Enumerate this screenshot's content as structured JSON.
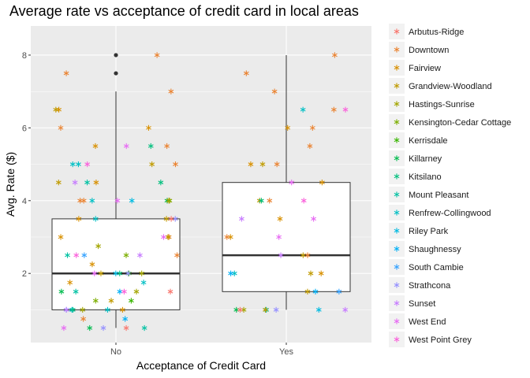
{
  "chart_data": {
    "type": "boxplot-jitter",
    "title": "Average rate vs acceptance of credit card in local areas",
    "xlabel": "Acceptance of Credit Card",
    "ylabel": "Avg. Rate ($)",
    "categories": [
      "No",
      "Yes"
    ],
    "ylim": [
      0.1,
      8.8
    ],
    "yticks": [
      2,
      4,
      6,
      8
    ],
    "grid": true,
    "legend_position": "right",
    "boxes": [
      {
        "category": "No",
        "whisker_low": 0.5,
        "q1": 1.0,
        "median": 2.0,
        "q3": 3.5,
        "whisker_high": 7.0,
        "outliers": [
          7.5,
          8.0
        ]
      },
      {
        "category": "Yes",
        "whisker_low": 1.0,
        "q1": 1.5,
        "median": 2.5,
        "q3": 4.5,
        "whisker_high": 8.0,
        "outliers": []
      }
    ],
    "series": [
      {
        "name": "Arbutus-Ridge",
        "color": "#F8766D"
      },
      {
        "name": "Downtown",
        "color": "#EA8331"
      },
      {
        "name": "Fairview",
        "color": "#D89000"
      },
      {
        "name": "Grandview-Woodland",
        "color": "#C09B00"
      },
      {
        "name": "Hastings-Sunrise",
        "color": "#A3A500"
      },
      {
        "name": "Kensington-Cedar Cottage",
        "color": "#7CAE00"
      },
      {
        "name": "Kerrisdale",
        "color": "#39B600"
      },
      {
        "name": "Killarney",
        "color": "#00BB4E"
      },
      {
        "name": "Kitsilano",
        "color": "#00BF7D"
      },
      {
        "name": "Mount Pleasant",
        "color": "#00C1A3"
      },
      {
        "name": "Renfrew-Collingwood",
        "color": "#00BFC4"
      },
      {
        "name": "Riley Park",
        "color": "#00BAE0"
      },
      {
        "name": "Shaughnessy",
        "color": "#00B0F6"
      },
      {
        "name": "South Cambie",
        "color": "#35A2FF"
      },
      {
        "name": "Strathcona",
        "color": "#9590FF"
      },
      {
        "name": "Sunset",
        "color": "#C77CFF"
      },
      {
        "name": "West End",
        "color": "#E76BF3"
      },
      {
        "name": "West Point Grey",
        "color": "#FA62DB"
      }
    ],
    "points": [
      {
        "x": "No",
        "y": 7.5,
        "series": 1
      },
      {
        "x": "No",
        "y": 8.0,
        "series": 1
      },
      {
        "x": "No",
        "y": 7.0,
        "series": 1
      },
      {
        "x": "No",
        "y": 6.5,
        "series": 2
      },
      {
        "x": "No",
        "y": 6.5,
        "series": 3
      },
      {
        "x": "No",
        "y": 6.0,
        "series": 1
      },
      {
        "x": "No",
        "y": 6.0,
        "series": 2
      },
      {
        "x": "No",
        "y": 5.5,
        "series": 16
      },
      {
        "x": "No",
        "y": 5.5,
        "series": 1
      },
      {
        "x": "No",
        "y": 5.5,
        "series": 8
      },
      {
        "x": "No",
        "y": 5.5,
        "series": 2
      },
      {
        "x": "No",
        "y": 5.0,
        "series": 10
      },
      {
        "x": "No",
        "y": 5.0,
        "series": 17
      },
      {
        "x": "No",
        "y": 5.0,
        "series": 3
      },
      {
        "x": "No",
        "y": 5.0,
        "series": 1
      },
      {
        "x": "No",
        "y": 5.0,
        "series": 10
      },
      {
        "x": "No",
        "y": 4.5,
        "series": 2
      },
      {
        "x": "No",
        "y": 4.5,
        "series": 3
      },
      {
        "x": "No",
        "y": 4.5,
        "series": 9
      },
      {
        "x": "No",
        "y": 4.5,
        "series": 15
      },
      {
        "x": "No",
        "y": 4.5,
        "series": 8
      },
      {
        "x": "No",
        "y": 4.0,
        "series": 1
      },
      {
        "x": "No",
        "y": 4.0,
        "series": 7
      },
      {
        "x": "No",
        "y": 4.0,
        "series": 1
      },
      {
        "x": "No",
        "y": 4.0,
        "series": 2
      },
      {
        "x": "No",
        "y": 4.0,
        "series": 5
      },
      {
        "x": "No",
        "y": 4.0,
        "series": 10
      },
      {
        "x": "No",
        "y": 4.0,
        "series": 11
      },
      {
        "x": "No",
        "y": 4.0,
        "series": 16
      },
      {
        "x": "No",
        "y": 3.5,
        "series": 2
      },
      {
        "x": "No",
        "y": 3.5,
        "series": 3
      },
      {
        "x": "No",
        "y": 3.5,
        "series": 10
      },
      {
        "x": "No",
        "y": 3.5,
        "series": 14
      },
      {
        "x": "No",
        "y": 3.5,
        "series": 0
      },
      {
        "x": "No",
        "y": 3.0,
        "series": 1
      },
      {
        "x": "No",
        "y": 3.0,
        "series": 2
      },
      {
        "x": "No",
        "y": 3.0,
        "series": 3
      },
      {
        "x": "No",
        "y": 3.0,
        "series": 16
      },
      {
        "x": "No",
        "y": 2.75,
        "series": 4
      },
      {
        "x": "No",
        "y": 2.5,
        "series": 9
      },
      {
        "x": "No",
        "y": 2.5,
        "series": 15
      },
      {
        "x": "No",
        "y": 2.5,
        "series": 5
      },
      {
        "x": "No",
        "y": 2.5,
        "series": 13
      },
      {
        "x": "No",
        "y": 2.5,
        "series": 17
      },
      {
        "x": "No",
        "y": 2.5,
        "series": 1
      },
      {
        "x": "No",
        "y": 2.25,
        "series": 2
      },
      {
        "x": "No",
        "y": 2.0,
        "series": 8
      },
      {
        "x": "No",
        "y": 2.0,
        "series": 4
      },
      {
        "x": "No",
        "y": 2.0,
        "series": 6
      },
      {
        "x": "No",
        "y": 2.0,
        "series": 11
      },
      {
        "x": "No",
        "y": 2.0,
        "series": 3
      },
      {
        "x": "No",
        "y": 2.0,
        "series": 14
      },
      {
        "x": "No",
        "y": 2.0,
        "series": 16
      },
      {
        "x": "No",
        "y": 1.75,
        "series": 10
      },
      {
        "x": "No",
        "y": 1.75,
        "series": 2
      },
      {
        "x": "No",
        "y": 1.5,
        "series": 12
      },
      {
        "x": "No",
        "y": 1.5,
        "series": 7
      },
      {
        "x": "No",
        "y": 1.5,
        "series": 17
      },
      {
        "x": "No",
        "y": 1.5,
        "series": 9
      },
      {
        "x": "No",
        "y": 1.5,
        "series": 4
      },
      {
        "x": "No",
        "y": 1.5,
        "series": 0
      },
      {
        "x": "No",
        "y": 1.25,
        "series": 5
      },
      {
        "x": "No",
        "y": 1.25,
        "series": 6
      },
      {
        "x": "No",
        "y": 1.25,
        "series": 3
      },
      {
        "x": "No",
        "y": 1.0,
        "series": 13
      },
      {
        "x": "No",
        "y": 1.0,
        "series": 11
      },
      {
        "x": "No",
        "y": 1.0,
        "series": 2
      },
      {
        "x": "No",
        "y": 1.0,
        "series": 15
      },
      {
        "x": "No",
        "y": 1.0,
        "series": 8
      },
      {
        "x": "No",
        "y": 1.0,
        "series": 10
      },
      {
        "x": "No",
        "y": 1.0,
        "series": 4
      },
      {
        "x": "No",
        "y": 0.75,
        "series": 1
      },
      {
        "x": "No",
        "y": 0.75,
        "series": 12
      },
      {
        "x": "No",
        "y": 0.5,
        "series": 16
      },
      {
        "x": "No",
        "y": 0.5,
        "series": 9
      },
      {
        "x": "No",
        "y": 0.5,
        "series": 0
      },
      {
        "x": "No",
        "y": 0.5,
        "series": 14
      },
      {
        "x": "No",
        "y": 0.5,
        "series": 7
      },
      {
        "x": "Yes",
        "y": 8.0,
        "series": 1
      },
      {
        "x": "Yes",
        "y": 7.5,
        "series": 1
      },
      {
        "x": "Yes",
        "y": 7.0,
        "series": 1
      },
      {
        "x": "Yes",
        "y": 6.5,
        "series": 10
      },
      {
        "x": "Yes",
        "y": 6.5,
        "series": 1
      },
      {
        "x": "Yes",
        "y": 6.5,
        "series": 17
      },
      {
        "x": "Yes",
        "y": 6.0,
        "series": 2
      },
      {
        "x": "Yes",
        "y": 6.0,
        "series": 1
      },
      {
        "x": "Yes",
        "y": 5.5,
        "series": 1
      },
      {
        "x": "Yes",
        "y": 5.0,
        "series": 2
      },
      {
        "x": "Yes",
        "y": 5.0,
        "series": 3
      },
      {
        "x": "Yes",
        "y": 5.0,
        "series": 1
      },
      {
        "x": "Yes",
        "y": 4.5,
        "series": 2
      },
      {
        "x": "Yes",
        "y": 4.5,
        "series": 16
      },
      {
        "x": "Yes",
        "y": 4.0,
        "series": 3
      },
      {
        "x": "Yes",
        "y": 4.0,
        "series": 1
      },
      {
        "x": "Yes",
        "y": 4.0,
        "series": 8
      },
      {
        "x": "Yes",
        "y": 4.0,
        "series": 17
      },
      {
        "x": "Yes",
        "y": 3.5,
        "series": 15
      },
      {
        "x": "Yes",
        "y": 3.5,
        "series": 2
      },
      {
        "x": "Yes",
        "y": 3.5,
        "series": 16
      },
      {
        "x": "Yes",
        "y": 3.0,
        "series": 2
      },
      {
        "x": "Yes",
        "y": 3.0,
        "series": 1
      },
      {
        "x": "Yes",
        "y": 3.0,
        "series": 16
      },
      {
        "x": "Yes",
        "y": 2.5,
        "series": 3
      },
      {
        "x": "Yes",
        "y": 2.5,
        "series": 15
      },
      {
        "x": "Yes",
        "y": 2.5,
        "series": 1
      },
      {
        "x": "Yes",
        "y": 2.0,
        "series": 10
      },
      {
        "x": "Yes",
        "y": 2.0,
        "series": 3
      },
      {
        "x": "Yes",
        "y": 2.0,
        "series": 12
      },
      {
        "x": "Yes",
        "y": 2.0,
        "series": 2
      },
      {
        "x": "Yes",
        "y": 1.5,
        "series": 12
      },
      {
        "x": "Yes",
        "y": 1.5,
        "series": 13
      },
      {
        "x": "Yes",
        "y": 1.5,
        "series": 3
      },
      {
        "x": "Yes",
        "y": 1.0,
        "series": 9
      },
      {
        "x": "Yes",
        "y": 1.0,
        "series": 4
      },
      {
        "x": "Yes",
        "y": 1.0,
        "series": 11
      },
      {
        "x": "Yes",
        "y": 1.0,
        "series": 15
      },
      {
        "x": "Yes",
        "y": 1.0,
        "series": 3
      },
      {
        "x": "Yes",
        "y": 1.0,
        "series": 14
      },
      {
        "x": "Yes",
        "y": 1.0,
        "series": 7
      },
      {
        "x": "Yes",
        "y": 1.0,
        "series": 0
      }
    ]
  }
}
